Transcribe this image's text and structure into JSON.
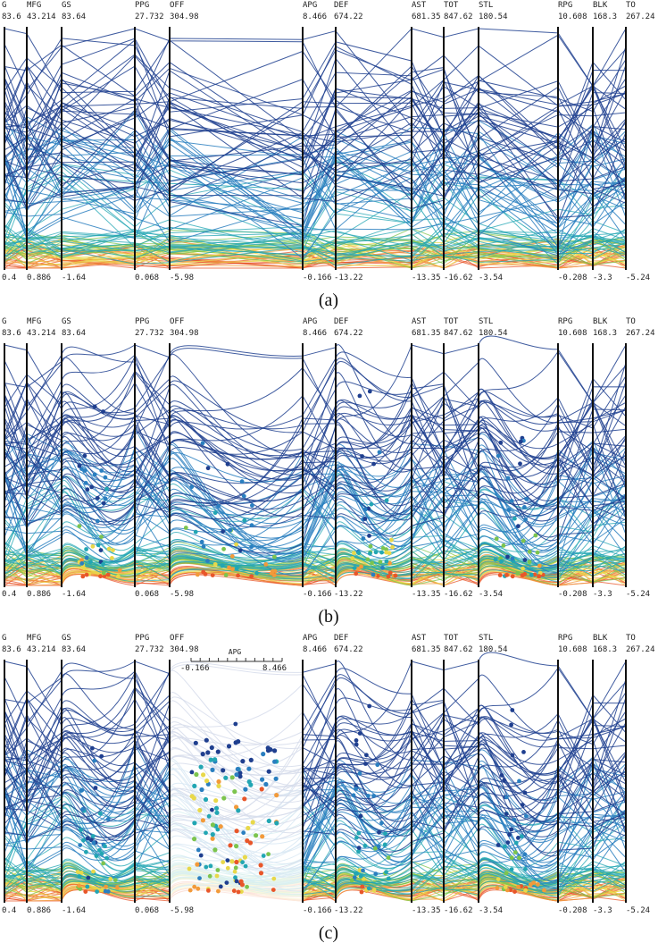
{
  "chart_data": [
    {
      "type": "parallel-coordinates",
      "panel_label": "(a)",
      "axes": [
        {
          "name": "G",
          "max": "83.6",
          "min": "0.4"
        },
        {
          "name": "MFG",
          "max": "43.214",
          "min": "0.886"
        },
        {
          "name": "GS",
          "max": "83.64",
          "min": "-1.64"
        },
        {
          "name": "PPG",
          "max": "27.732",
          "min": "0.068"
        },
        {
          "name": "OFF",
          "max": "304.98",
          "min": "-5.98"
        },
        {
          "name": "APG",
          "max": "8.466",
          "min": "-0.166"
        },
        {
          "name": "DEF",
          "max": "674.22",
          "min": "-13.22"
        },
        {
          "name": "AST",
          "max": "681.35",
          "min": "-13.35"
        },
        {
          "name": "TOT",
          "max": "847.62",
          "min": "-16.62"
        },
        {
          "name": "STL",
          "max": "180.54",
          "min": "-3.54"
        },
        {
          "name": "RPG",
          "max": "10.608",
          "min": "-0.208"
        },
        {
          "name": "BLK",
          "max": "168.3",
          "min": "-3.3"
        },
        {
          "name": "TO",
          "max": "267.24",
          "min": "-5.24"
        }
      ],
      "color_scale": "blue (high) to orange (low)"
    },
    {
      "type": "parallel-coordinates",
      "panel_label": "(b)",
      "axes": [
        {
          "name": "G",
          "max": "83.6",
          "min": "0.4"
        },
        {
          "name": "MFG",
          "max": "43.214",
          "min": "0.886"
        },
        {
          "name": "GS",
          "max": "83.64",
          "min": "-1.64"
        },
        {
          "name": "PPG",
          "max": "27.732",
          "min": "0.068"
        },
        {
          "name": "OFF",
          "max": "304.98",
          "min": "-5.98"
        },
        {
          "name": "APG",
          "max": "8.466",
          "min": "-0.166"
        },
        {
          "name": "DEF",
          "max": "674.22",
          "min": "-13.22"
        },
        {
          "name": "AST",
          "max": "681.35",
          "min": "-13.35"
        },
        {
          "name": "TOT",
          "max": "847.62",
          "min": "-16.62"
        },
        {
          "name": "STL",
          "max": "180.54",
          "min": "-3.54"
        },
        {
          "name": "RPG",
          "max": "10.608",
          "min": "-0.208"
        },
        {
          "name": "BLK",
          "max": "168.3",
          "min": "-3.3"
        },
        {
          "name": "TO",
          "max": "267.24",
          "min": "-5.24"
        }
      ],
      "curved_gaps": [
        "GS-PPG",
        "OFF-APG",
        "DEF-AST",
        "STL-RPG"
      ]
    },
    {
      "type": "parallel-coordinates",
      "panel_label": "(c)",
      "axes": [
        {
          "name": "G",
          "max": "83.6",
          "min": "0.4"
        },
        {
          "name": "MFG",
          "max": "43.214",
          "min": "0.886"
        },
        {
          "name": "GS",
          "max": "83.64",
          "min": "-1.64"
        },
        {
          "name": "PPG",
          "max": "27.732",
          "min": "0.068"
        },
        {
          "name": "OFF",
          "max": "304.98",
          "min": "-5.98"
        },
        {
          "name": "APG",
          "max": "8.466",
          "min": "-0.166"
        },
        {
          "name": "DEF",
          "max": "674.22",
          "min": "-13.22"
        },
        {
          "name": "AST",
          "max": "681.35",
          "min": "-13.35"
        },
        {
          "name": "TOT",
          "max": "847.62",
          "min": "-16.62"
        },
        {
          "name": "STL",
          "max": "180.54",
          "min": "-3.54"
        },
        {
          "name": "RPG",
          "max": "10.608",
          "min": "-0.208"
        },
        {
          "name": "BLK",
          "max": "168.3",
          "min": "-3.3"
        },
        {
          "name": "TO",
          "max": "267.24",
          "min": "-5.24"
        }
      ],
      "curved_gaps": [
        "GS-PPG",
        "OFF-APG",
        "DEF-AST",
        "STL-RPG"
      ],
      "scatter_inset": {
        "axis_name": "APG",
        "min": "-0.166",
        "max": "8.466"
      }
    }
  ],
  "colors": {
    "axis": "#111111",
    "high": "#1f3f8f",
    "mid_blue": "#2a7fc0",
    "teal": "#22a6b3",
    "green": "#7cc44e",
    "yellow": "#e8d84a",
    "orange": "#f29a3a",
    "red_orange": "#e8562a"
  }
}
